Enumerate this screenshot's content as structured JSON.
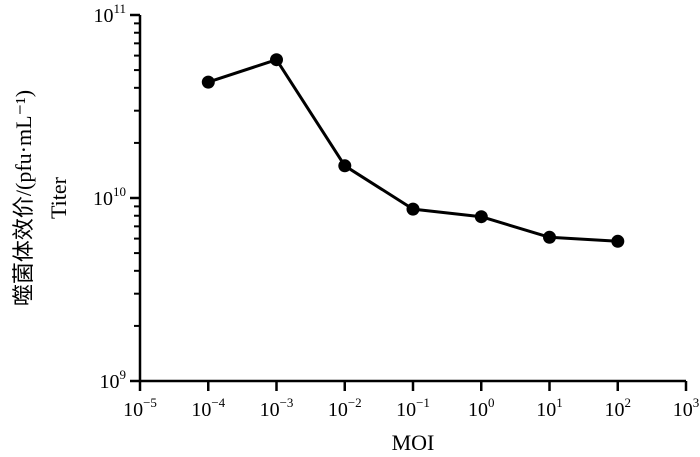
{
  "chart_data": {
    "type": "line",
    "xscale": "log",
    "yscale": "log",
    "xlim": [
      1e-05,
      1000
    ],
    "ylim": [
      1000000000,
      100000000000
    ],
    "grid": false,
    "xlabel": "MOI",
    "ylabel_cn": "噬菌体效价/(pfu·mL⁻¹)",
    "ylabel_en": "Titer",
    "x_ticks": [
      {
        "base": "10",
        "exp": "−5"
      },
      {
        "base": "10",
        "exp": "−4"
      },
      {
        "base": "10",
        "exp": "−3"
      },
      {
        "base": "10",
        "exp": "−2"
      },
      {
        "base": "10",
        "exp": "−1"
      },
      {
        "base": "10",
        "exp": "0"
      },
      {
        "base": "10",
        "exp": "1"
      },
      {
        "base": "10",
        "exp": "2"
      },
      {
        "base": "10",
        "exp": "3"
      }
    ],
    "y_ticks": [
      {
        "base": "10",
        "exp": "9"
      },
      {
        "base": "10",
        "exp": "10"
      },
      {
        "base": "10",
        "exp": "11"
      }
    ],
    "series": [
      {
        "x": [
          0.0001,
          0.001,
          0.01,
          0.1,
          1,
          10,
          100
        ],
        "y": [
          43000000000,
          57000000000,
          15000000000,
          8700000000,
          7900000000,
          6100000000,
          5800000000
        ]
      }
    ]
  }
}
